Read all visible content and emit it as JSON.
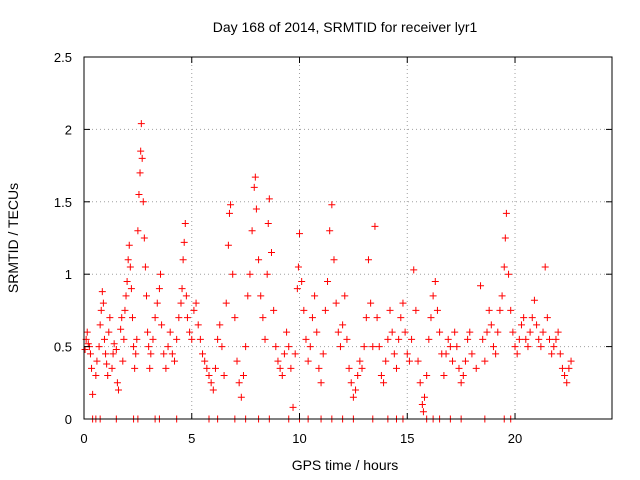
{
  "chart_data": {
    "type": "scatter",
    "title": "Day 168 of 2014, SRMTID for receiver lyr1",
    "xlabel": "GPS time / hours",
    "ylabel": "SRMTID / TECUs",
    "xlim": [
      0,
      24.5
    ],
    "ylim": [
      0,
      2.5
    ],
    "xticks": [
      0,
      5,
      10,
      15,
      20
    ],
    "xtick_labels": [
      "0",
      "5",
      "10",
      "15",
      "20"
    ],
    "yticks": [
      0,
      0.5,
      1,
      1.5,
      2,
      2.5
    ],
    "ytick_labels": [
      "0",
      "0.5",
      "1",
      "1.5",
      "2",
      "2.5"
    ],
    "grid": true,
    "marker": "+",
    "color": "#ff0000",
    "series": [
      {
        "name": "SRMTID",
        "points": [
          [
            0.05,
            0.48
          ],
          [
            0.1,
            0.55
          ],
          [
            0.15,
            0.6
          ],
          [
            0.2,
            0.52
          ],
          [
            0.25,
            0.5
          ],
          [
            0.3,
            0.45
          ],
          [
            0.35,
            0.35
          ],
          [
            0.4,
            0.17
          ],
          [
            0.55,
            0.3
          ],
          [
            0.6,
            0.4
          ],
          [
            0.7,
            0.5
          ],
          [
            0.75,
            0.65
          ],
          [
            0.8,
            0.75
          ],
          [
            0.85,
            0.88
          ],
          [
            0.9,
            0.8
          ],
          [
            0.95,
            0.55
          ],
          [
            1.0,
            0.45
          ],
          [
            1.05,
            0.38
          ],
          [
            1.1,
            0.3
          ],
          [
            1.15,
            0.6
          ],
          [
            1.2,
            0.7
          ],
          [
            1.3,
            0.35
          ],
          [
            1.35,
            0.45
          ],
          [
            1.4,
            0.52
          ],
          [
            1.5,
            0.48
          ],
          [
            1.55,
            0.25
          ],
          [
            1.6,
            0.2
          ],
          [
            1.7,
            0.62
          ],
          [
            1.75,
            0.7
          ],
          [
            1.8,
            0.4
          ],
          [
            1.85,
            0.55
          ],
          [
            1.9,
            0.75
          ],
          [
            1.95,
            0.85
          ],
          [
            2.0,
            0.95
          ],
          [
            2.05,
            1.1
          ],
          [
            2.1,
            1.2
          ],
          [
            2.15,
            1.05
          ],
          [
            2.2,
            0.9
          ],
          [
            2.25,
            0.7
          ],
          [
            2.3,
            0.5
          ],
          [
            2.35,
            0.35
          ],
          [
            2.4,
            0.45
          ],
          [
            2.45,
            0.55
          ],
          [
            2.5,
            1.3
          ],
          [
            2.55,
            1.55
          ],
          [
            2.6,
            1.7
          ],
          [
            2.63,
            1.85
          ],
          [
            2.66,
            2.04
          ],
          [
            2.7,
            1.8
          ],
          [
            2.75,
            1.5
          ],
          [
            2.8,
            1.25
          ],
          [
            2.85,
            1.05
          ],
          [
            2.9,
            0.85
          ],
          [
            2.95,
            0.6
          ],
          [
            3.0,
            0.5
          ],
          [
            3.05,
            0.35
          ],
          [
            3.1,
            0.45
          ],
          [
            3.2,
            0.55
          ],
          [
            3.3,
            0.7
          ],
          [
            3.4,
            0.8
          ],
          [
            3.5,
            0.9
          ],
          [
            3.55,
            1.0
          ],
          [
            3.6,
            0.65
          ],
          [
            3.7,
            0.45
          ],
          [
            3.8,
            0.35
          ],
          [
            3.9,
            0.5
          ],
          [
            4.0,
            0.6
          ],
          [
            4.1,
            0.45
          ],
          [
            4.2,
            0.4
          ],
          [
            4.3,
            0.55
          ],
          [
            4.4,
            0.7
          ],
          [
            4.5,
            0.8
          ],
          [
            4.55,
            0.9
          ],
          [
            4.6,
            1.1
          ],
          [
            4.65,
            1.22
          ],
          [
            4.7,
            1.35
          ],
          [
            4.75,
            0.85
          ],
          [
            4.8,
            0.7
          ],
          [
            4.9,
            0.6
          ],
          [
            5.0,
            0.55
          ],
          [
            5.1,
            0.75
          ],
          [
            5.2,
            0.8
          ],
          [
            5.3,
            0.65
          ],
          [
            5.4,
            0.55
          ],
          [
            5.5,
            0.45
          ],
          [
            5.6,
            0.4
          ],
          [
            5.7,
            0.35
          ],
          [
            5.8,
            0.3
          ],
          [
            5.9,
            0.25
          ],
          [
            6.0,
            0.2
          ],
          [
            6.1,
            0.35
          ],
          [
            6.2,
            0.55
          ],
          [
            6.3,
            0.65
          ],
          [
            6.4,
            0.5
          ],
          [
            6.5,
            0.3
          ],
          [
            6.6,
            0.8
          ],
          [
            6.7,
            1.2
          ],
          [
            6.75,
            1.42
          ],
          [
            6.8,
            1.48
          ],
          [
            6.9,
            1.0
          ],
          [
            7.0,
            0.7
          ],
          [
            7.1,
            0.4
          ],
          [
            7.2,
            0.25
          ],
          [
            7.3,
            0.15
          ],
          [
            7.4,
            0.3
          ],
          [
            7.5,
            0.5
          ],
          [
            7.6,
            0.85
          ],
          [
            7.7,
            1.0
          ],
          [
            7.8,
            1.3
          ],
          [
            7.9,
            1.6
          ],
          [
            7.95,
            1.67
          ],
          [
            8.0,
            1.45
          ],
          [
            8.1,
            1.1
          ],
          [
            8.2,
            0.85
          ],
          [
            8.3,
            0.7
          ],
          [
            8.4,
            0.55
          ],
          [
            8.5,
            1.0
          ],
          [
            8.55,
            1.35
          ],
          [
            8.6,
            1.52
          ],
          [
            8.7,
            1.15
          ],
          [
            8.8,
            0.75
          ],
          [
            8.9,
            0.5
          ],
          [
            9.0,
            0.4
          ],
          [
            9.1,
            0.35
          ],
          [
            9.2,
            0.3
          ],
          [
            9.3,
            0.45
          ],
          [
            9.4,
            0.6
          ],
          [
            9.5,
            0.5
          ],
          [
            9.6,
            0.35
          ],
          [
            9.7,
            0.08
          ],
          [
            9.8,
            0.45
          ],
          [
            9.9,
            0.9
          ],
          [
            9.95,
            1.05
          ],
          [
            10.0,
            1.28
          ],
          [
            10.1,
            0.95
          ],
          [
            10.2,
            0.75
          ],
          [
            10.3,
            0.55
          ],
          [
            10.4,
            0.4
          ],
          [
            10.5,
            0.5
          ],
          [
            10.6,
            0.7
          ],
          [
            10.7,
            0.85
          ],
          [
            10.8,
            0.6
          ],
          [
            10.9,
            0.35
          ],
          [
            11.0,
            0.25
          ],
          [
            11.1,
            0.45
          ],
          [
            11.2,
            0.75
          ],
          [
            11.3,
            0.95
          ],
          [
            11.4,
            1.3
          ],
          [
            11.5,
            1.48
          ],
          [
            11.6,
            1.1
          ],
          [
            11.7,
            0.8
          ],
          [
            11.8,
            0.6
          ],
          [
            11.9,
            0.5
          ],
          [
            12.0,
            0.65
          ],
          [
            12.1,
            0.85
          ],
          [
            12.2,
            0.55
          ],
          [
            12.3,
            0.35
          ],
          [
            12.4,
            0.25
          ],
          [
            12.5,
            0.15
          ],
          [
            12.6,
            0.2
          ],
          [
            12.7,
            0.3
          ],
          [
            12.8,
            0.4
          ],
          [
            12.9,
            0.35
          ],
          [
            13.0,
            0.5
          ],
          [
            13.1,
            0.7
          ],
          [
            13.2,
            1.1
          ],
          [
            13.3,
            0.8
          ],
          [
            13.4,
            0.5
          ],
          [
            13.5,
            1.33
          ],
          [
            13.6,
            0.7
          ],
          [
            13.7,
            0.5
          ],
          [
            13.8,
            0.3
          ],
          [
            13.9,
            0.25
          ],
          [
            14.0,
            0.4
          ],
          [
            14.1,
            0.55
          ],
          [
            14.2,
            0.75
          ],
          [
            14.3,
            0.6
          ],
          [
            14.4,
            0.45
          ],
          [
            14.5,
            0.35
          ],
          [
            14.6,
            0.55
          ],
          [
            14.7,
            0.7
          ],
          [
            14.8,
            0.8
          ],
          [
            14.9,
            0.6
          ],
          [
            15.0,
            0.45
          ],
          [
            15.1,
            0.4
          ],
          [
            15.2,
            0.55
          ],
          [
            15.3,
            1.03
          ],
          [
            15.4,
            0.75
          ],
          [
            15.5,
            0.4
          ],
          [
            15.6,
            0.25
          ],
          [
            15.7,
            0.1
          ],
          [
            15.75,
            0.05
          ],
          [
            15.8,
            0.15
          ],
          [
            15.9,
            0.3
          ],
          [
            16.0,
            0.55
          ],
          [
            16.1,
            0.7
          ],
          [
            16.2,
            0.85
          ],
          [
            16.3,
            0.95
          ],
          [
            16.4,
            0.75
          ],
          [
            16.5,
            0.6
          ],
          [
            16.6,
            0.45
          ],
          [
            16.7,
            0.3
          ],
          [
            16.8,
            0.45
          ],
          [
            16.9,
            0.55
          ],
          [
            17.0,
            0.5
          ],
          [
            17.1,
            0.4
          ],
          [
            17.2,
            0.6
          ],
          [
            17.3,
            0.5
          ],
          [
            17.4,
            0.35
          ],
          [
            17.5,
            0.25
          ],
          [
            17.6,
            0.3
          ],
          [
            17.7,
            0.4
          ],
          [
            17.8,
            0.55
          ],
          [
            17.9,
            0.6
          ],
          [
            18.0,
            0.45
          ],
          [
            18.2,
            0.35
          ],
          [
            18.4,
            0.92
          ],
          [
            18.5,
            0.55
          ],
          [
            18.6,
            0.4
          ],
          [
            18.7,
            0.6
          ],
          [
            18.8,
            0.75
          ],
          [
            18.9,
            0.65
          ],
          [
            19.0,
            0.5
          ],
          [
            19.1,
            0.45
          ],
          [
            19.2,
            0.6
          ],
          [
            19.3,
            0.75
          ],
          [
            19.4,
            0.85
          ],
          [
            19.5,
            1.05
          ],
          [
            19.55,
            1.25
          ],
          [
            19.6,
            1.42
          ],
          [
            19.7,
            1.0
          ],
          [
            19.8,
            0.75
          ],
          [
            19.9,
            0.6
          ],
          [
            20.0,
            0.5
          ],
          [
            20.1,
            0.45
          ],
          [
            20.2,
            0.55
          ],
          [
            20.3,
            0.65
          ],
          [
            20.4,
            0.7
          ],
          [
            20.5,
            0.55
          ],
          [
            20.6,
            0.5
          ],
          [
            20.7,
            0.6
          ],
          [
            20.8,
            0.7
          ],
          [
            20.9,
            0.82
          ],
          [
            21.0,
            0.65
          ],
          [
            21.1,
            0.55
          ],
          [
            21.2,
            0.5
          ],
          [
            21.3,
            0.6
          ],
          [
            21.4,
            1.05
          ],
          [
            21.5,
            0.7
          ],
          [
            21.6,
            0.55
          ],
          [
            21.7,
            0.45
          ],
          [
            21.8,
            0.5
          ],
          [
            21.9,
            0.55
          ],
          [
            22.0,
            0.6
          ],
          [
            22.1,
            0.45
          ],
          [
            22.2,
            0.35
          ],
          [
            22.3,
            0.3
          ],
          [
            22.4,
            0.25
          ],
          [
            22.5,
            0.35
          ],
          [
            22.6,
            0.4
          ],
          [
            0.4,
            0.0
          ],
          [
            0.55,
            0.0
          ],
          [
            0.75,
            0.0
          ],
          [
            1.5,
            0.0
          ],
          [
            2.3,
            0.0
          ],
          [
            2.5,
            0.0
          ],
          [
            3.3,
            0.0
          ],
          [
            3.5,
            0.0
          ],
          [
            4.3,
            0.0
          ],
          [
            5.8,
            0.0
          ],
          [
            6.2,
            0.0
          ],
          [
            7.0,
            0.0
          ],
          [
            7.5,
            0.0
          ],
          [
            8.1,
            0.0
          ],
          [
            8.6,
            0.0
          ],
          [
            9.5,
            0.0
          ],
          [
            10.0,
            0.0
          ],
          [
            10.4,
            0.0
          ],
          [
            11.0,
            0.0
          ],
          [
            11.5,
            0.0
          ],
          [
            12.0,
            0.0
          ],
          [
            12.5,
            0.0
          ],
          [
            13.4,
            0.0
          ],
          [
            14.1,
            0.0
          ],
          [
            14.5,
            0.0
          ],
          [
            14.8,
            0.0
          ],
          [
            15.9,
            0.0
          ],
          [
            16.2,
            0.0
          ],
          [
            16.5,
            0.0
          ],
          [
            17.0,
            0.0
          ],
          [
            17.5,
            0.0
          ],
          [
            18.6,
            0.0
          ],
          [
            19.5,
            0.0
          ],
          [
            19.8,
            0.0
          ]
        ]
      }
    ]
  }
}
